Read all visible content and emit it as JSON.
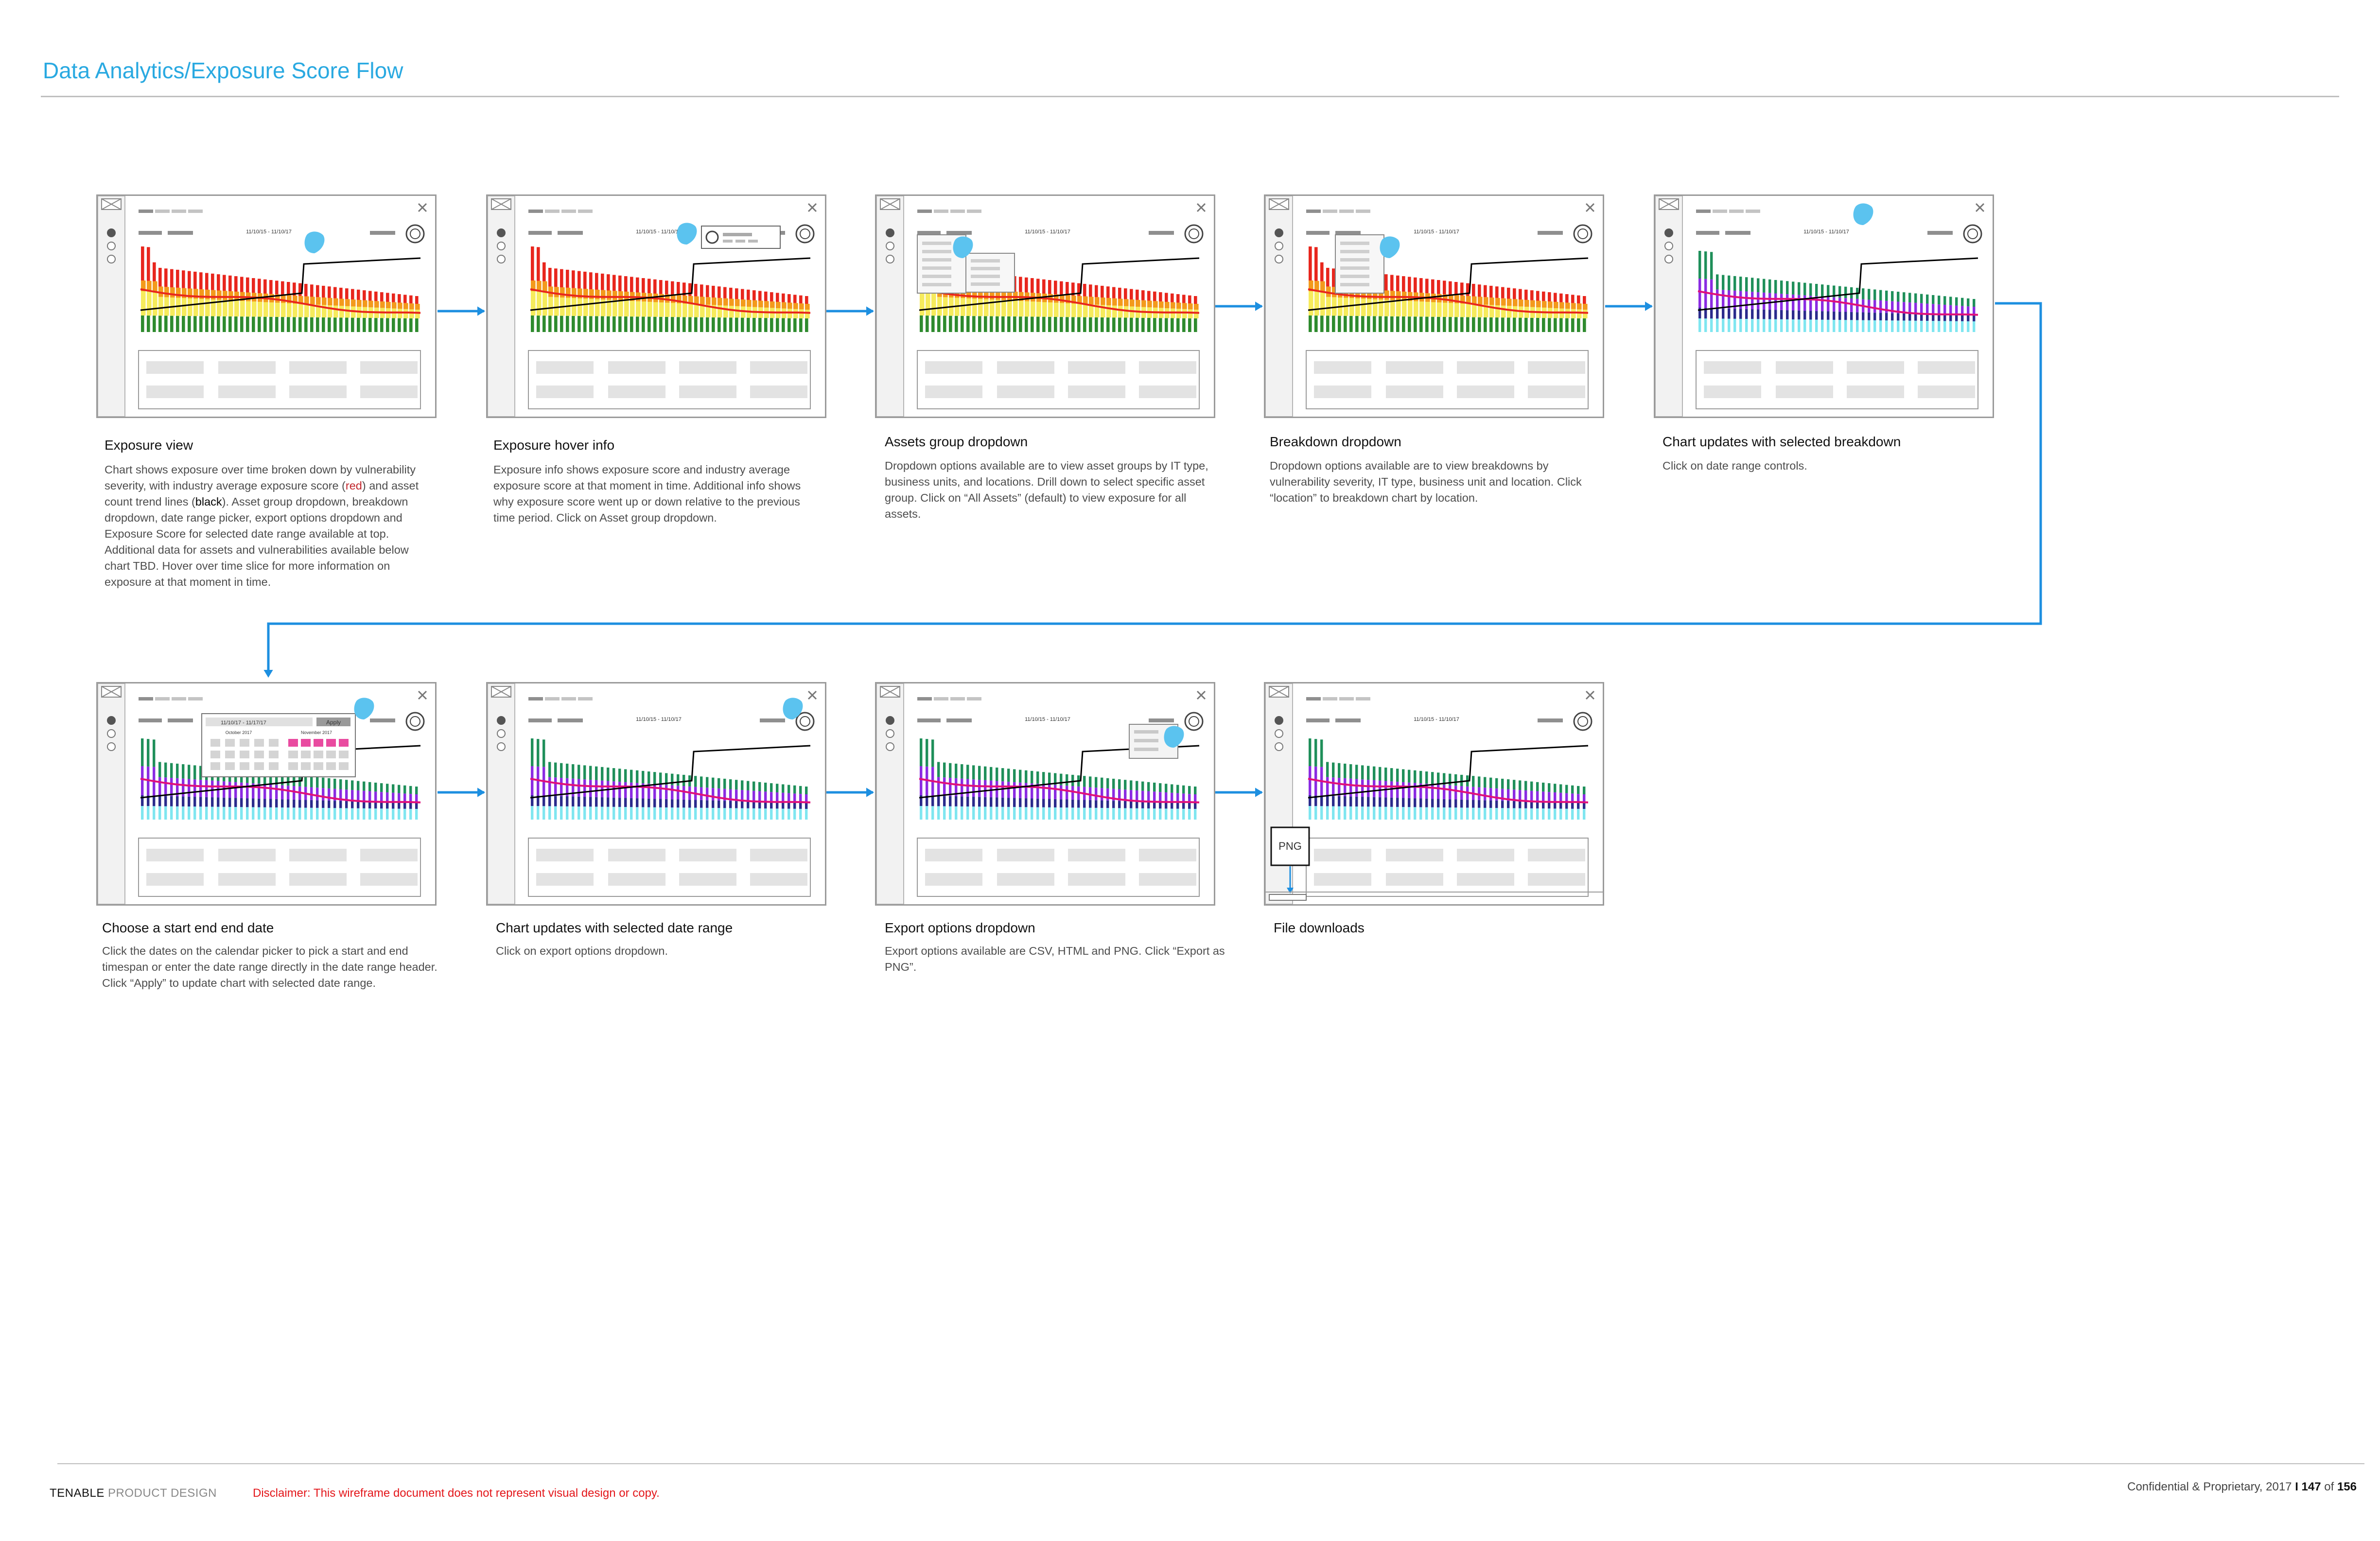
{
  "page": {
    "title": "Data Analytics/Exposure Score Flow",
    "footer": {
      "brand": "TENABLE",
      "brand_suffix": "PRODUCT DESIGN",
      "disclaimer": "Disclaimer: This wireframe document does not represent visual design or copy.",
      "confidential": "Confidential & Proprietary, 2017",
      "separator": "I",
      "page_current": "147",
      "page_of": "of",
      "page_total": "156"
    }
  },
  "wireframe_labels": {
    "date_range": "11/10/15 - 11/10/17",
    "calendar_range": "11/10/17 - 11/17/17",
    "calendar_apply": "Apply",
    "calendar_month_left": "October 2017",
    "calendar_month_right": "November 2017",
    "download_format": "PNG"
  },
  "colors": {
    "accent_blue": "#29a9e1",
    "flow_arrow": "#1d8fe0",
    "severity_red": "#e8261d",
    "severity_orange": "#f39a1c",
    "severity_yellow": "#f5e94a",
    "severity_green": "#2e8b2e",
    "breakdown_green": "#1f8f5a",
    "breakdown_purple": "#8a2be2",
    "breakdown_navy": "#2b2b8c",
    "breakdown_cyan": "#7fe6f0",
    "breakdown_magenta": "#e0107a",
    "hotspot": "#5bc3ef"
  },
  "steps": [
    {
      "title": "Exposure view",
      "description": [
        "Chart shows exposure over time broken down by vulnerability severity, with industry average exposure score (",
        "red",
        ") and asset count trend lines (",
        "black",
        "). Asset group dropdown, breakdown dropdown, date range picker, export options dropdown and Exposure Score for selected date range available at top. Additional data for assets and vulnerabilities available below chart TBD. Hover over time slice for more information on exposure at that moment in time."
      ],
      "chart_variant": "severity",
      "overlay": "none",
      "hotspot": "time-slice"
    },
    {
      "title": "Exposure hover info",
      "description": [
        "Exposure info shows exposure score and industry average exposure score at that moment in time. Additional info shows why exposure score went up or down relative to the previous time period. Click on Asset group dropdown."
      ],
      "chart_variant": "severity",
      "overlay": "hover-card",
      "hotspot": "asset-group-dropdown"
    },
    {
      "title": "Assets group dropdown",
      "description": [
        "Dropdown options available are to view asset groups by IT type, business units, and locations.  Drill down to select specific asset group.  Click on “All Assets” (default) to view exposure for all assets."
      ],
      "chart_variant": "severity",
      "overlay": "asset-menu",
      "hotspot": "all-assets-option"
    },
    {
      "title": "Breakdown dropdown",
      "description": [
        "Dropdown options available are to view breakdowns by vulnerability severity, IT type, business unit and location.  Click “location” to breakdown chart by location."
      ],
      "chart_variant": "severity",
      "overlay": "breakdown-menu",
      "hotspot": "location-option"
    },
    {
      "title": "Chart updates with selected breakdown",
      "description": [
        "Click on date range controls."
      ],
      "chart_variant": "breakdown",
      "overlay": "none",
      "hotspot": "date-range"
    },
    {
      "title": "Choose a start end end date",
      "description": [
        "Click the dates on the calendar picker to pick a start and end timespan or enter the date range directly in the date range header.  Click “Apply” to update chart with selected date range."
      ],
      "chart_variant": "breakdown",
      "overlay": "calendar",
      "hotspot": "apply-button"
    },
    {
      "title": "Chart updates with selected date range",
      "description": [
        "Click on export options dropdown."
      ],
      "chart_variant": "breakdown",
      "overlay": "none",
      "hotspot": "export-dropdown"
    },
    {
      "title": "Export options dropdown",
      "description": [
        "Export options available are CSV, HTML and PNG. Click “Export as PNG”."
      ],
      "chart_variant": "breakdown",
      "overlay": "export-menu",
      "hotspot": "export-png"
    },
    {
      "title": "File downloads",
      "description": [],
      "chart_variant": "breakdown",
      "overlay": "download",
      "hotspot": "none"
    }
  ]
}
